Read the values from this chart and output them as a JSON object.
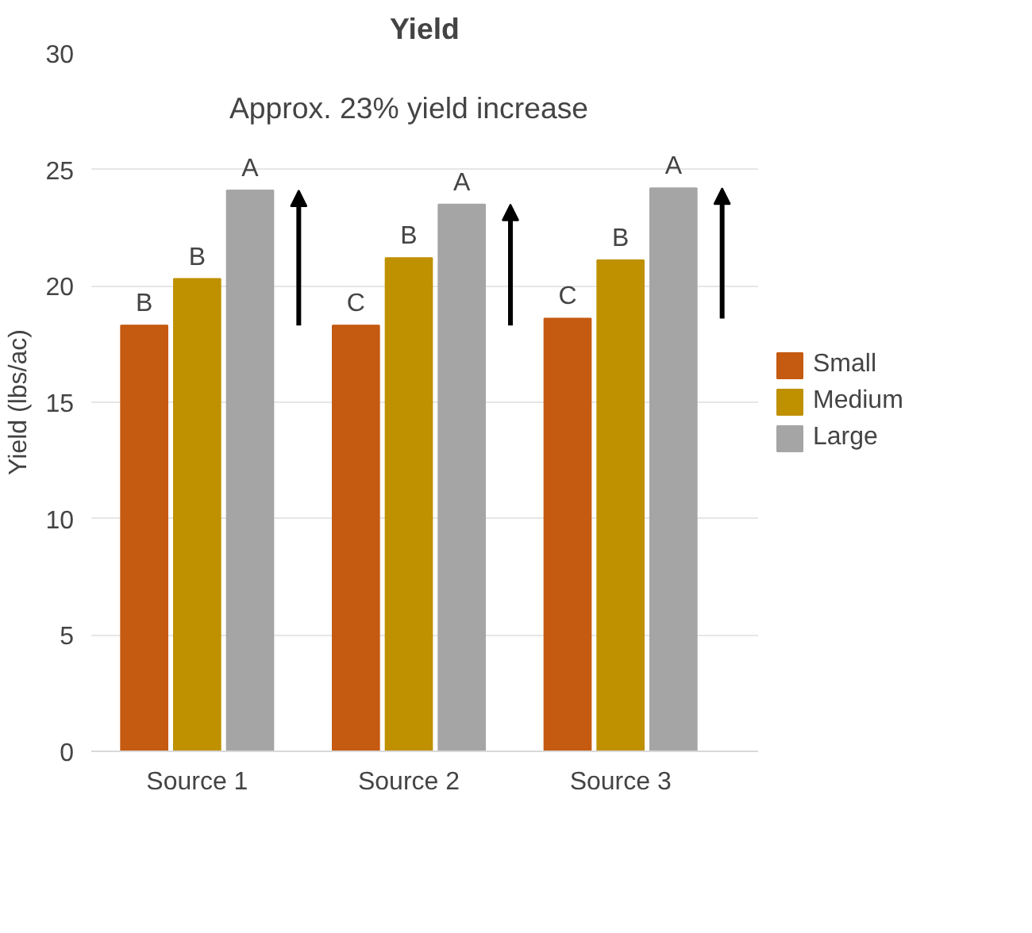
{
  "chart_data": {
    "type": "bar",
    "title": "Yield",
    "ylabel": "Yield (lbs/ac)",
    "categories": [
      "Source 1",
      "Source 2",
      "Source 3"
    ],
    "series": [
      {
        "name": "Small",
        "color": "#c55a11",
        "values": [
          18.3,
          18.3,
          18.6
        ],
        "value_labels": [
          "B",
          "C",
          "C"
        ]
      },
      {
        "name": "Medium",
        "color": "#bf9000",
        "values": [
          20.3,
          21.2,
          21.1
        ],
        "value_labels": [
          "B",
          "B",
          "B"
        ]
      },
      {
        "name": "Large",
        "color": "#a5a5a5",
        "values": [
          24.1,
          23.5,
          24.2
        ],
        "value_labels": [
          "A",
          "A",
          "A"
        ]
      }
    ],
    "ylim": [
      0,
      30
    ],
    "yticks": [
      0,
      5,
      10,
      15,
      20,
      25,
      30
    ],
    "grid": "y",
    "legend": "right",
    "annotations": [
      "Approx. 23% yield increase"
    ]
  }
}
